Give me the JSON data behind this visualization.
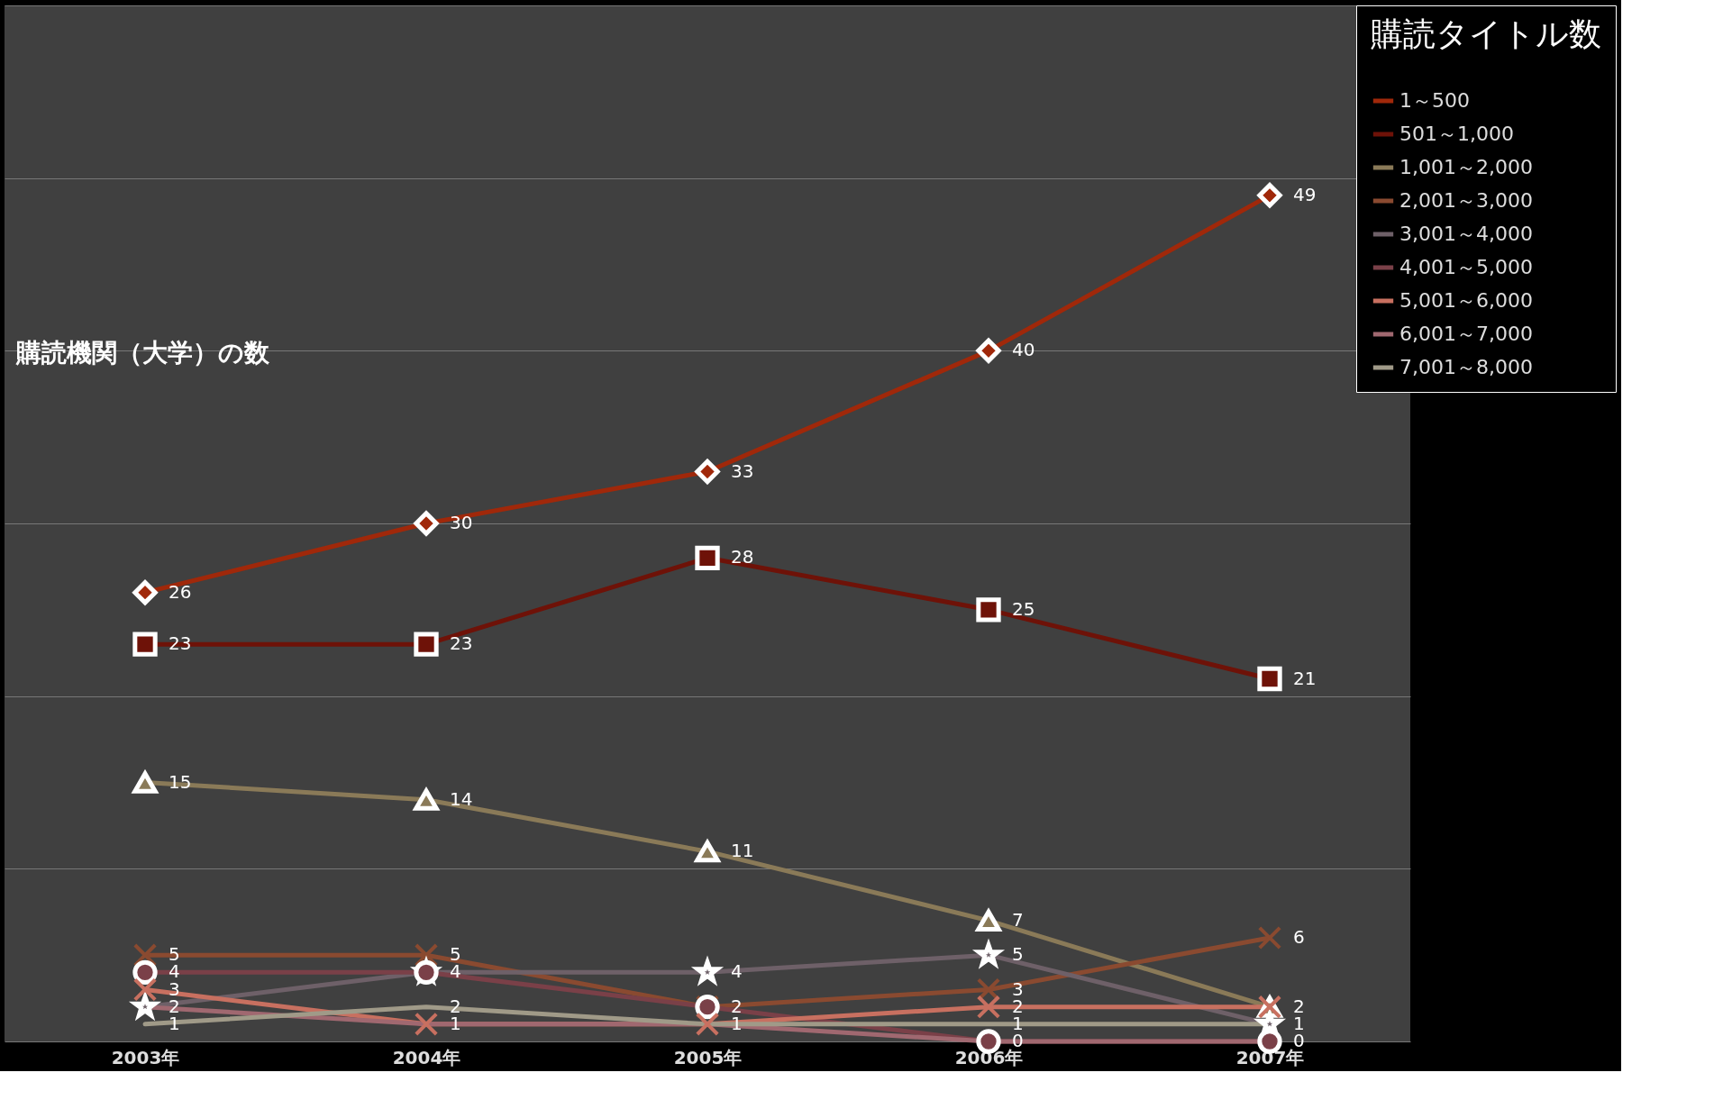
{
  "chart_data": {
    "type": "line",
    "ylabel": "購読機関（大学）の数",
    "legend_title": "購読タイトル数",
    "categories": [
      "2003年",
      "2004年",
      "2005年",
      "2006年",
      "2007年"
    ],
    "series": [
      {
        "name": "1～500",
        "color": "#a0280a",
        "marker": "diamond",
        "values": [
          26,
          30,
          33,
          40,
          49
        ],
        "value_labels": [
          "26",
          "30",
          "33",
          "40",
          "49"
        ]
      },
      {
        "name": "501～1,000",
        "color": "#6e1208",
        "marker": "square",
        "values": [
          23,
          23,
          28,
          25,
          21
        ],
        "value_labels": [
          "23",
          "23",
          "28",
          "25",
          "21"
        ]
      },
      {
        "name": "1,001～2,000",
        "color": "#8a7a58",
        "marker": "triangle",
        "values": [
          15,
          14,
          11,
          7,
          2
        ],
        "value_labels": [
          "15",
          "14",
          "11",
          "7",
          "2"
        ]
      },
      {
        "name": "2,001～3,000",
        "color": "#8a4a30",
        "marker": "cross",
        "values": [
          5,
          5,
          2,
          3,
          6
        ],
        "value_labels": [
          "5",
          "5",
          "2",
          "3",
          "6"
        ]
      },
      {
        "name": "3,001～4,000",
        "color": "#6e6068",
        "marker": "star",
        "values": [
          2,
          4,
          4,
          5,
          1
        ],
        "value_labels": [
          "2",
          "4",
          "4",
          "5",
          "1"
        ]
      },
      {
        "name": "4,001～5,000",
        "color": "#7a4048",
        "marker": "circle",
        "values": [
          4,
          4,
          2,
          0,
          0
        ],
        "value_labels": [
          "4",
          null,
          null,
          "0",
          "0"
        ]
      },
      {
        "name": "5,001～6,000",
        "color": "#c87060",
        "marker": "cross",
        "values": [
          3,
          1,
          1,
          2,
          2
        ],
        "value_labels": [
          "3",
          "1",
          "1",
          "2",
          null
        ]
      },
      {
        "name": "6,001～7,000",
        "color": "#a06870",
        "marker": "none",
        "values": [
          2,
          1,
          1,
          0,
          0
        ],
        "value_labels": [
          null,
          null,
          null,
          null,
          null
        ]
      },
      {
        "name": "7,001～8,000",
        "color": "#a09a88",
        "marker": "none",
        "values": [
          1,
          2,
          1,
          1,
          1
        ],
        "value_labels": [
          "1",
          "2",
          null,
          "1",
          null
        ]
      }
    ],
    "ylim": [
      0,
      60
    ],
    "yticks": [
      0,
      10,
      20,
      30,
      40,
      50,
      60
    ],
    "tick_labels": "x",
    "grid": "y",
    "legend": "right",
    "line_style": "solid"
  }
}
